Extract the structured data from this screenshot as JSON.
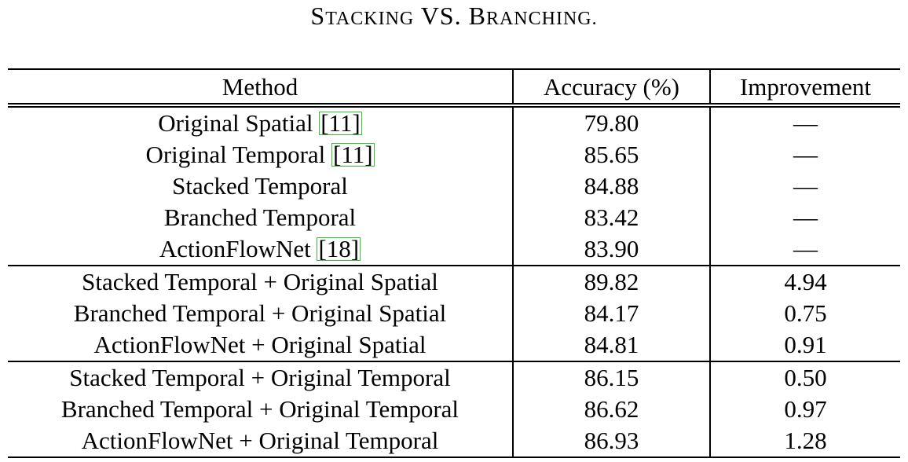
{
  "caption": {
    "first_cap": "S",
    "first_rest": "TACKING",
    "middle": " VS. ",
    "second_cap": "B",
    "second_rest": "RANCHING."
  },
  "headers": {
    "method": "Method",
    "accuracy": "Accuracy (%)",
    "improvement": "Improvement"
  },
  "rows": [
    {
      "method": "Original Spatial ",
      "cite": "[11]",
      "accuracy": "79.80",
      "improvement": "—"
    },
    {
      "method": "Original Temporal ",
      "cite": "[11]",
      "accuracy": "85.65",
      "improvement": "—"
    },
    {
      "method": "Stacked Temporal",
      "cite": "",
      "accuracy": "84.88",
      "improvement": "—"
    },
    {
      "method": "Branched Temporal",
      "cite": "",
      "accuracy": "83.42",
      "improvement": "—"
    },
    {
      "method": "ActionFlowNet ",
      "cite": "[18]",
      "accuracy": "83.90",
      "improvement": "—"
    },
    {
      "method": "Stacked Temporal + Original Spatial",
      "cite": "",
      "accuracy": "89.82",
      "improvement": "4.94"
    },
    {
      "method": "Branched Temporal + Original Spatial",
      "cite": "",
      "accuracy": "84.17",
      "improvement": "0.75"
    },
    {
      "method": "ActionFlowNet + Original Spatial",
      "cite": "",
      "accuracy": "84.81",
      "improvement": "0.91"
    },
    {
      "method": "Stacked Temporal + Original Temporal",
      "cite": "",
      "accuracy": "86.15",
      "improvement": "0.50"
    },
    {
      "method": "Branched Temporal + Original Temporal",
      "cite": "",
      "accuracy": "86.62",
      "improvement": "0.97"
    },
    {
      "method": "ActionFlowNet + Original Temporal",
      "cite": "",
      "accuracy": "86.93",
      "improvement": "1.28"
    }
  ]
}
